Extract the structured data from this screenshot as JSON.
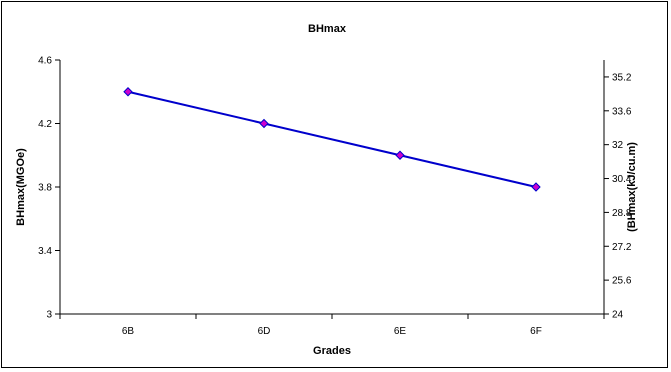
{
  "chart_data": {
    "type": "line",
    "title": "BHmax",
    "xlabel": "Grades",
    "ylabel": "BHmax(MGOe)",
    "y2label": "(BHmax(kJ/cu.m)",
    "categories": [
      "6B",
      "6D",
      "6E",
      "6F"
    ],
    "series": [
      {
        "values": [
          4.4,
          4.2,
          4.0,
          3.8
        ],
        "color": "#0000cc",
        "marker_color": "#cc00cc"
      }
    ],
    "ylim": [
      3,
      4.6
    ],
    "yticks": [
      "3",
      "3.4",
      "3.8",
      "4.2",
      "4.6"
    ],
    "y2lim": [
      24,
      36
    ],
    "y2ticks": [
      "24",
      "25.6",
      "27.2",
      "28.8",
      "30.4",
      "32",
      "33.6",
      "35.2"
    ],
    "grid": false,
    "legend": "none"
  }
}
